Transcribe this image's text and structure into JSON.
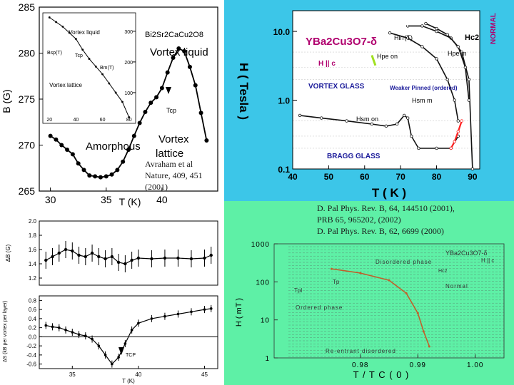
{
  "colors": {
    "left_bg": "#ffffff",
    "top_right_bg": "#3cc6e8",
    "bottom_right_bg": "#5ef0a6",
    "ybco_inner_bg": "#ffffff",
    "ybco_title": "#b0006e",
    "ybco_labels": "#1a1a9a",
    "curve_dark": "#111111",
    "curve_red": "#ff2020",
    "curve_green": "#a0e020",
    "bottom_curve": "#c0602a"
  },
  "references": {
    "left": [
      "Avraham et al",
      "Nature, 409, 451",
      "(2001)"
    ],
    "right": [
      "D. Pal Phys. Rev. B, 64, 144510 (2001),",
      "PRB 65, 965202, (2002)",
      "D. Pal Phys. Rev. B, 62, 6699 (2000)"
    ]
  },
  "chart_data": [
    {
      "id": "bscco_bfield",
      "type": "line",
      "title": "Bi2Sr2CaCu2O8",
      "xlabel": "T (K)",
      "ylabel": "B (G)",
      "xlim": [
        29,
        45
      ],
      "ylim": [
        265,
        285
      ],
      "xticks": [
        "30",
        "35",
        "40"
      ],
      "yticks": [
        "265",
        "270",
        "275",
        "280",
        "285"
      ],
      "annotations": [
        "Vortex liquid",
        "Amorphous",
        "Vortex",
        "lattice",
        "Tcp"
      ],
      "x": [
        30.0,
        30.5,
        31.0,
        31.5,
        32.0,
        32.5,
        33.0,
        33.5,
        34.0,
        34.5,
        35.0,
        35.5,
        36.0,
        36.5,
        37.0,
        37.5,
        38.0,
        38.5,
        39.0,
        39.5,
        40.0,
        40.5,
        41.0,
        41.5,
        42.0,
        42.5,
        43.0,
        43.5,
        44.0
      ],
      "y": [
        271.0,
        270.6,
        270.0,
        269.5,
        269.0,
        268.0,
        267.3,
        266.7,
        266.6,
        266.5,
        266.6,
        266.8,
        267.3,
        268.2,
        269.5,
        271.0,
        272.4,
        273.6,
        274.6,
        275.2,
        276.2,
        277.9,
        279.5,
        280.5,
        280.2,
        278.5,
        276.5,
        273.5,
        270.5
      ],
      "inset": {
        "type": "line",
        "annotations": [
          "Vortex liquid",
          "Vortex lattice",
          "Bsp(T)",
          "Bm(T)",
          "Tcp"
        ],
        "xticks": [
          "20",
          "40",
          "60",
          "80"
        ],
        "yticks": [
          "100",
          "200",
          "300"
        ],
        "x": [
          20,
          25,
          30,
          35,
          40,
          45,
          50,
          55,
          60,
          65,
          70,
          75,
          80
        ],
        "y": [
          345,
          330,
          315,
          295,
          275,
          240,
          210,
          185,
          160,
          130,
          100,
          70,
          20
        ]
      }
    },
    {
      "id": "bscco_db",
      "type": "line",
      "ylabel": "ΔB (G)",
      "xlim": [
        32.5,
        46
      ],
      "ylim": [
        1.1,
        2.0
      ],
      "yticks": [
        "1.2",
        "1.4",
        "1.6",
        "1.8",
        "2.0"
      ],
      "x": [
        33.0,
        33.5,
        34.0,
        34.5,
        35.0,
        35.5,
        36.0,
        36.5,
        37.0,
        37.5,
        38.0,
        38.5,
        39.0,
        39.5,
        40.0,
        41.0,
        42.0,
        43.0,
        44.0,
        45.0,
        45.5
      ],
      "y": [
        1.45,
        1.5,
        1.55,
        1.6,
        1.58,
        1.52,
        1.5,
        1.55,
        1.5,
        1.47,
        1.5,
        1.42,
        1.4,
        1.45,
        1.48,
        1.47,
        1.48,
        1.48,
        1.47,
        1.48,
        1.52
      ]
    },
    {
      "id": "bscco_ds",
      "type": "line",
      "xlabel": "T (K)",
      "ylabel": "ΔS (kB per vortex per layer)",
      "xlim": [
        32.5,
        46
      ],
      "ylim": [
        -0.7,
        0.9
      ],
      "xticks": [
        "35",
        "40",
        "45"
      ],
      "yticks": [
        "-0.6",
        "-0.4",
        "-0.2",
        "0.0",
        "0.2",
        "0.4",
        "0.6",
        "0.8"
      ],
      "annotations": [
        "TCP"
      ],
      "x": [
        33.0,
        33.5,
        34.0,
        34.5,
        35.0,
        35.5,
        36.0,
        36.5,
        37.0,
        37.5,
        38.0,
        38.5,
        39.0,
        39.5,
        40.0,
        41.0,
        42.0,
        43.0,
        44.0,
        45.0,
        45.5
      ],
      "y": [
        0.25,
        0.22,
        0.2,
        0.15,
        0.1,
        0.05,
        0.02,
        -0.05,
        -0.2,
        -0.4,
        -0.6,
        -0.45,
        -0.15,
        0.15,
        0.3,
        0.4,
        0.45,
        0.5,
        0.55,
        0.6,
        0.62
      ]
    },
    {
      "id": "ybco_ht",
      "type": "line",
      "title": "YBa2Cu3O7-δ",
      "xlabel": "T ( K )",
      "ylabel": "H ( Tesla )",
      "xlim": [
        40,
        92
      ],
      "ylim": [
        0.1,
        20
      ],
      "yscale": "log",
      "xticks": [
        "40",
        "50",
        "60",
        "70",
        "80",
        "90"
      ],
      "yticks": [
        "0.1",
        "1.0",
        "10.0"
      ],
      "annotations": [
        "H || c",
        "VORTEX GLASS",
        "BRAGG GLASS",
        "Weaker Pinned (ordered)",
        "NORMAL",
        "Hirr(T)",
        "Hc2",
        "Hpe on",
        "Hsm m",
        "Hsm on",
        "Hpe m"
      ],
      "series": [
        {
          "color": "#111111",
          "x": [
            42,
            48,
            55,
            62,
            66,
            69,
            71,
            72,
            73,
            75,
            80,
            84,
            86
          ],
          "y": [
            0.6,
            0.55,
            0.5,
            0.45,
            0.42,
            0.45,
            0.6,
            0.55,
            0.3,
            0.2,
            0.2,
            0.2,
            0.3
          ]
        },
        {
          "color": "#ff2020",
          "x": [
            84,
            85,
            86,
            87
          ],
          "y": [
            0.2,
            0.25,
            0.35,
            0.5
          ]
        },
        {
          "color": "#111111",
          "x": [
            67,
            72,
            76,
            80,
            83,
            85,
            86
          ],
          "y": [
            9.5,
            8,
            6,
            4,
            2,
            1,
            0.5
          ]
        },
        {
          "color": "#111111",
          "x": [
            72,
            76,
            80,
            84,
            87,
            89,
            90
          ],
          "y": [
            12,
            12,
            10,
            8,
            5,
            2,
            0.1
          ]
        },
        {
          "color": "#111111",
          "x": [
            77,
            80,
            83,
            86,
            88,
            89
          ],
          "y": [
            13,
            11,
            9,
            6,
            3,
            1
          ]
        }
      ]
    },
    {
      "id": "ybco_htc",
      "type": "line",
      "title": "YBa2Cu3O7-δ",
      "xlabel": "T / T C ( 0 )",
      "ylabel": "H ( mT )",
      "xlim": [
        0.965,
        1.005
      ],
      "ylim": [
        1,
        1000
      ],
      "yscale": "log",
      "xticks": [
        "0.98",
        "0.99",
        "1.00"
      ],
      "yticks": [
        "1",
        "10",
        "100",
        "1000"
      ],
      "annotations": [
        "H || c",
        "Disordered phase",
        "Hc2",
        "Normal",
        "Tpl",
        "Tp",
        "Ordered phase",
        "Re-entrant disordered"
      ],
      "series": [
        {
          "color": "#c0602a",
          "x": [
            0.975,
            0.98,
            0.985,
            0.988,
            0.99,
            0.991,
            0.992
          ],
          "y": [
            220,
            170,
            110,
            50,
            15,
            5,
            2
          ]
        }
      ]
    }
  ]
}
